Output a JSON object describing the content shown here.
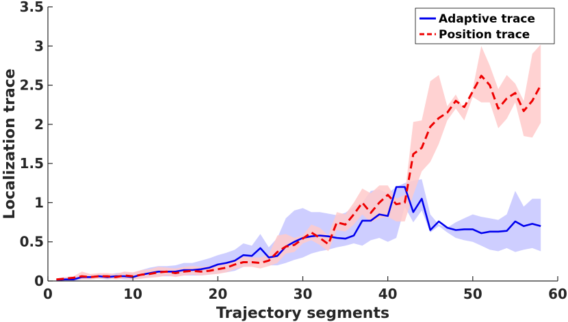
{
  "chart_data": {
    "type": "line",
    "title": "",
    "xlabel": "Trajectory segments",
    "ylabel": "Localization trace",
    "xlim": [
      0,
      60
    ],
    "ylim": [
      0,
      3.5
    ],
    "xticks": [
      "0",
      "10",
      "20",
      "30",
      "40",
      "50",
      "60"
    ],
    "yticks": [
      "0",
      "0.5",
      "1",
      "1.5",
      "2",
      "2.5",
      "3",
      "3.5"
    ],
    "legend_position": "top-right",
    "series": [
      {
        "name": "Adaptive trace",
        "color": "#0000ee",
        "band_color": "#c5c5ff",
        "style": "solid",
        "x": [
          1,
          2,
          3,
          4,
          5,
          6,
          7,
          8,
          9,
          10,
          11,
          12,
          13,
          14,
          15,
          16,
          17,
          18,
          19,
          20,
          21,
          22,
          23,
          24,
          25,
          26,
          27,
          28,
          29,
          30,
          31,
          32,
          33,
          34,
          35,
          36,
          37,
          38,
          39,
          40,
          41,
          42,
          43,
          44,
          45,
          46,
          47,
          48,
          49,
          50,
          51,
          52,
          53,
          54,
          55,
          56,
          57,
          58
        ],
        "values": [
          0.01,
          0.02,
          0.02,
          0.05,
          0.05,
          0.06,
          0.05,
          0.06,
          0.06,
          0.05,
          0.08,
          0.1,
          0.12,
          0.12,
          0.12,
          0.14,
          0.14,
          0.15,
          0.17,
          0.21,
          0.23,
          0.26,
          0.33,
          0.32,
          0.42,
          0.3,
          0.32,
          0.44,
          0.5,
          0.55,
          0.57,
          0.58,
          0.57,
          0.55,
          0.54,
          0.58,
          0.77,
          0.77,
          0.85,
          0.83,
          1.2,
          1.2,
          0.88,
          1.05,
          0.65,
          0.76,
          0.68,
          0.65,
          0.66,
          0.66,
          0.61,
          0.63,
          0.63,
          0.64,
          0.76,
          0.7,
          0.73,
          0.7
        ],
        "upper": [
          0.03,
          0.04,
          0.04,
          0.08,
          0.08,
          0.09,
          0.08,
          0.1,
          0.11,
          0.1,
          0.14,
          0.17,
          0.19,
          0.19,
          0.2,
          0.23,
          0.23,
          0.26,
          0.29,
          0.33,
          0.36,
          0.4,
          0.48,
          0.45,
          0.6,
          0.43,
          0.55,
          0.8,
          0.9,
          0.93,
          0.88,
          0.88,
          0.86,
          0.84,
          0.87,
          0.95,
          1.0,
          1.15,
          1.17,
          1.12,
          1.2,
          1.25,
          1.28,
          1.3,
          0.85,
          0.72,
          0.68,
          0.75,
          0.8,
          0.85,
          0.82,
          0.8,
          0.78,
          0.85,
          1.15,
          0.95,
          1.05,
          1.05
        ],
        "lower": [
          0.0,
          0.0,
          0.0,
          0.02,
          0.02,
          0.03,
          0.02,
          0.03,
          0.02,
          0.02,
          0.03,
          0.05,
          0.06,
          0.06,
          0.06,
          0.07,
          0.07,
          0.07,
          0.08,
          0.1,
          0.11,
          0.13,
          0.18,
          0.2,
          0.26,
          0.2,
          0.2,
          0.23,
          0.27,
          0.3,
          0.35,
          0.38,
          0.4,
          0.43,
          0.45,
          0.48,
          0.45,
          0.52,
          0.55,
          0.5,
          0.55,
          0.95,
          0.75,
          0.9,
          0.62,
          0.7,
          0.62,
          0.55,
          0.52,
          0.5,
          0.45,
          0.4,
          0.38,
          0.42,
          0.37,
          0.4,
          0.42,
          0.38
        ]
      },
      {
        "name": "Position trace",
        "color": "#ee0000",
        "band_color": "#ffcaca",
        "style": "dashed",
        "x": [
          1,
          2,
          3,
          4,
          5,
          6,
          7,
          8,
          9,
          10,
          11,
          12,
          13,
          14,
          15,
          16,
          17,
          18,
          19,
          20,
          21,
          22,
          23,
          24,
          25,
          26,
          27,
          28,
          29,
          30,
          31,
          32,
          33,
          34,
          35,
          36,
          37,
          38,
          39,
          40,
          41,
          42,
          43,
          44,
          45,
          46,
          47,
          48,
          49,
          50,
          51,
          52,
          53,
          54,
          55,
          56,
          57,
          58
        ],
        "values": [
          0.02,
          0.03,
          0.04,
          0.06,
          0.05,
          0.06,
          0.06,
          0.05,
          0.07,
          0.06,
          0.08,
          0.09,
          0.11,
          0.12,
          0.1,
          0.12,
          0.13,
          0.12,
          0.13,
          0.15,
          0.17,
          0.21,
          0.24,
          0.24,
          0.23,
          0.26,
          0.37,
          0.44,
          0.46,
          0.54,
          0.62,
          0.55,
          0.47,
          0.75,
          0.72,
          0.85,
          1.0,
          0.87,
          1.0,
          1.1,
          0.98,
          1.0,
          1.62,
          1.7,
          1.97,
          2.08,
          2.15,
          2.3,
          2.22,
          2.42,
          2.62,
          2.5,
          2.2,
          2.33,
          2.4,
          2.17,
          2.3,
          2.5
        ],
        "upper": [
          0.03,
          0.05,
          0.06,
          0.12,
          0.09,
          0.1,
          0.1,
          0.09,
          0.12,
          0.11,
          0.14,
          0.15,
          0.18,
          0.17,
          0.16,
          0.18,
          0.19,
          0.18,
          0.19,
          0.22,
          0.24,
          0.28,
          0.31,
          0.3,
          0.3,
          0.34,
          0.58,
          0.6,
          0.55,
          0.58,
          0.72,
          0.68,
          0.58,
          0.88,
          0.85,
          1.0,
          1.18,
          1.12,
          1.22,
          1.22,
          1.05,
          1.1,
          2.03,
          2.05,
          2.55,
          2.63,
          2.23,
          2.38,
          2.18,
          2.45,
          3.0,
          2.75,
          2.45,
          2.63,
          2.52,
          2.3,
          2.9,
          3.02
        ],
        "lower": [
          0.0,
          0.01,
          0.02,
          0.02,
          0.02,
          0.03,
          0.03,
          0.02,
          0.03,
          0.02,
          0.03,
          0.04,
          0.05,
          0.07,
          0.05,
          0.07,
          0.08,
          0.07,
          0.08,
          0.09,
          0.11,
          0.15,
          0.18,
          0.18,
          0.16,
          0.19,
          0.23,
          0.35,
          0.37,
          0.48,
          0.52,
          0.46,
          0.38,
          0.65,
          0.63,
          0.72,
          0.85,
          0.75,
          0.8,
          0.82,
          0.76,
          0.76,
          1.1,
          1.4,
          1.52,
          1.75,
          2.05,
          2.2,
          2.05,
          2.35,
          2.28,
          2.28,
          1.95,
          2.07,
          2.28,
          1.85,
          1.83,
          2.02
        ]
      }
    ]
  }
}
